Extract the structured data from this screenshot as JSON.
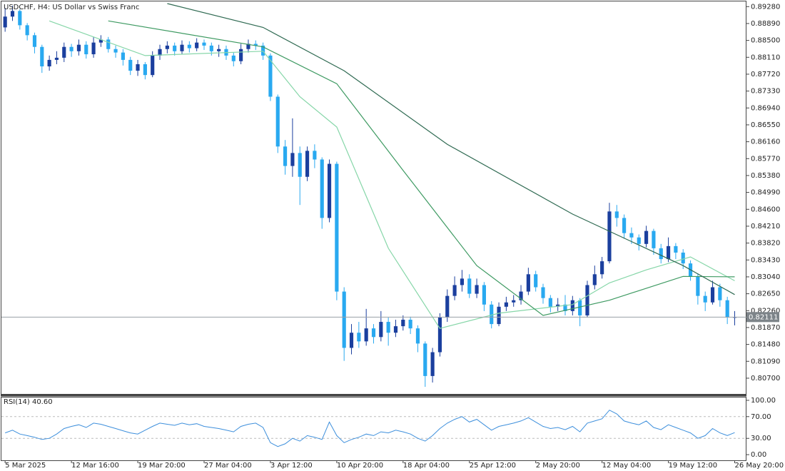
{
  "chart_data": [
    {
      "type": "candlestick",
      "title": "USDCHF, H4:  US Dollar vs Swiss Franc",
      "xlim": [
        -0.5,
        100.5
      ],
      "xticks": [
        {
          "value": 0,
          "label": "5 Mar 2025"
        },
        {
          "value": 9,
          "label": "12 Mar 16:00"
        },
        {
          "value": 18,
          "label": "19 Mar 20:00"
        },
        {
          "value": 27,
          "label": "27 Mar 04:00"
        },
        {
          "value": 36,
          "label": "3 Apr 12:00"
        },
        {
          "value": 45,
          "label": "10 Apr 20:00"
        },
        {
          "value": 54,
          "label": "18 Apr 04:00"
        },
        {
          "value": 63,
          "label": "25 Apr 12:00"
        },
        {
          "value": 72,
          "label": "2 May 20:00"
        },
        {
          "value": 81,
          "label": "12 May 04:00"
        },
        {
          "value": 90,
          "label": "19 May 12:00"
        },
        {
          "value": 99,
          "label": "26 May 20:00"
        }
      ],
      "ylim": [
        0.8032,
        0.894
      ],
      "yticks": [
        {
          "value": 0.8928,
          "label": "0.89280"
        },
        {
          "value": 0.8889,
          "label": "0.88890"
        },
        {
          "value": 0.885,
          "label": "0.88500"
        },
        {
          "value": 0.8811,
          "label": "0.88110"
        },
        {
          "value": 0.8772,
          "label": "0.87720"
        },
        {
          "value": 0.8733,
          "label": "0.87330"
        },
        {
          "value": 0.8694,
          "label": "0.86940"
        },
        {
          "value": 0.8655,
          "label": "0.86550"
        },
        {
          "value": 0.8616,
          "label": "0.86160"
        },
        {
          "value": 0.8577,
          "label": "0.85770"
        },
        {
          "value": 0.8538,
          "label": "0.85380"
        },
        {
          "value": 0.8499,
          "label": "0.84990"
        },
        {
          "value": 0.846,
          "label": "0.84600"
        },
        {
          "value": 0.8421,
          "label": "0.84210"
        },
        {
          "value": 0.8382,
          "label": "0.83820"
        },
        {
          "value": 0.8343,
          "label": "0.83430"
        },
        {
          "value": 0.8304,
          "label": "0.83040"
        },
        {
          "value": 0.8265,
          "label": "0.82650"
        },
        {
          "value": 0.8226,
          "label": "0.82260"
        },
        {
          "value": 0.8187,
          "label": "0.81870"
        },
        {
          "value": 0.8148,
          "label": "0.81480"
        },
        {
          "value": 0.8109,
          "label": "0.81090"
        },
        {
          "value": 0.807,
          "label": "0.80700"
        }
      ],
      "up_color": "#1b3f9e",
      "down_color": "#29a9f0",
      "open": [
        0.888,
        0.8905,
        0.8918,
        0.8885,
        0.8862,
        0.8835,
        0.879,
        0.8805,
        0.881,
        0.8835,
        0.8825,
        0.884,
        0.8818,
        0.8845,
        0.8852,
        0.883,
        0.8822,
        0.8805,
        0.878,
        0.8795,
        0.877,
        0.8815,
        0.883,
        0.8838,
        0.8825,
        0.884,
        0.8832,
        0.8845,
        0.8838,
        0.8825,
        0.883,
        0.8815,
        0.8802,
        0.883,
        0.8842,
        0.8838,
        0.8815,
        0.872,
        0.8605,
        0.856,
        0.859,
        0.8535,
        0.8595,
        0.8575,
        0.844,
        0.8565,
        0.827,
        0.814,
        0.8175,
        0.8155,
        0.8185,
        0.8165,
        0.82,
        0.8175,
        0.819,
        0.8205,
        0.8185,
        0.815,
        0.8075,
        0.813,
        0.821,
        0.826,
        0.8285,
        0.83,
        0.8265,
        0.8285,
        0.824,
        0.8195,
        0.8235,
        0.8245,
        0.825,
        0.827,
        0.831,
        0.828,
        0.8255,
        0.8235,
        0.824,
        0.8225,
        0.825,
        0.8215,
        0.8285,
        0.831,
        0.834,
        0.8455,
        0.844,
        0.8405,
        0.8395,
        0.838,
        0.841,
        0.837,
        0.8345,
        0.8375,
        0.836,
        0.8335,
        0.8305,
        0.826,
        0.8245,
        0.828,
        0.825,
        0.821
      ],
      "high": [
        0.8925,
        0.893,
        0.8922,
        0.889,
        0.8868,
        0.884,
        0.8815,
        0.8825,
        0.8845,
        0.8842,
        0.8852,
        0.8848,
        0.8858,
        0.8862,
        0.8858,
        0.8838,
        0.883,
        0.8812,
        0.8805,
        0.88,
        0.8825,
        0.884,
        0.8848,
        0.8845,
        0.885,
        0.8848,
        0.8855,
        0.8852,
        0.8845,
        0.884,
        0.8838,
        0.8822,
        0.8842,
        0.8852,
        0.885,
        0.8845,
        0.882,
        0.8725,
        0.862,
        0.867,
        0.8605,
        0.8605,
        0.861,
        0.858,
        0.8575,
        0.857,
        0.828,
        0.8195,
        0.82,
        0.823,
        0.8195,
        0.8225,
        0.821,
        0.8205,
        0.8215,
        0.8212,
        0.8192,
        0.8155,
        0.814,
        0.822,
        0.8275,
        0.8305,
        0.832,
        0.831,
        0.83,
        0.8292,
        0.8248,
        0.8245,
        0.8258,
        0.8262,
        0.8285,
        0.8325,
        0.8318,
        0.8288,
        0.8262,
        0.8255,
        0.8262,
        0.826,
        0.8255,
        0.8295,
        0.833,
        0.835,
        0.8475,
        0.847,
        0.8448,
        0.8418,
        0.8402,
        0.8422,
        0.8415,
        0.838,
        0.8395,
        0.8382,
        0.8368,
        0.8342,
        0.8312,
        0.827,
        0.8295,
        0.8288,
        0.8258,
        0.8225
      ],
      "low": [
        0.887,
        0.8895,
        0.8875,
        0.885,
        0.882,
        0.8775,
        0.878,
        0.8795,
        0.88,
        0.8812,
        0.8815,
        0.8808,
        0.881,
        0.8835,
        0.8822,
        0.881,
        0.8792,
        0.877,
        0.8768,
        0.876,
        0.8765,
        0.8805,
        0.882,
        0.8815,
        0.8818,
        0.8822,
        0.8825,
        0.8828,
        0.8815,
        0.8812,
        0.8805,
        0.879,
        0.8795,
        0.8822,
        0.8828,
        0.8805,
        0.871,
        0.859,
        0.854,
        0.8535,
        0.847,
        0.8525,
        0.8555,
        0.8415,
        0.843,
        0.825,
        0.811,
        0.8125,
        0.814,
        0.8145,
        0.815,
        0.8155,
        0.8145,
        0.8165,
        0.818,
        0.8172,
        0.813,
        0.805,
        0.806,
        0.812,
        0.82,
        0.825,
        0.827,
        0.8255,
        0.8255,
        0.8225,
        0.8185,
        0.819,
        0.8225,
        0.8235,
        0.824,
        0.8262,
        0.827,
        0.8242,
        0.8222,
        0.8225,
        0.8215,
        0.8215,
        0.819,
        0.821,
        0.8275,
        0.83,
        0.8335,
        0.842,
        0.8392,
        0.838,
        0.8365,
        0.8372,
        0.8355,
        0.8335,
        0.8338,
        0.8345,
        0.8322,
        0.8295,
        0.824,
        0.8225,
        0.824,
        0.8235,
        0.8195,
        0.8192
      ],
      "close": [
        0.8905,
        0.8918,
        0.8885,
        0.8862,
        0.8835,
        0.879,
        0.8805,
        0.881,
        0.8835,
        0.8825,
        0.884,
        0.8818,
        0.8845,
        0.8852,
        0.883,
        0.8822,
        0.8805,
        0.878,
        0.8795,
        0.877,
        0.8815,
        0.883,
        0.8838,
        0.8825,
        0.884,
        0.8832,
        0.8845,
        0.8838,
        0.8825,
        0.883,
        0.8815,
        0.8802,
        0.883,
        0.8842,
        0.8838,
        0.8815,
        0.872,
        0.8605,
        0.856,
        0.859,
        0.8535,
        0.8595,
        0.8575,
        0.844,
        0.8565,
        0.827,
        0.814,
        0.8175,
        0.8155,
        0.8185,
        0.8165,
        0.82,
        0.8175,
        0.819,
        0.8205,
        0.8185,
        0.815,
        0.8075,
        0.813,
        0.821,
        0.826,
        0.8285,
        0.83,
        0.8265,
        0.8285,
        0.824,
        0.8195,
        0.8235,
        0.8245,
        0.825,
        0.827,
        0.831,
        0.828,
        0.8255,
        0.8235,
        0.824,
        0.8225,
        0.825,
        0.8215,
        0.8285,
        0.831,
        0.834,
        0.8455,
        0.844,
        0.8405,
        0.8395,
        0.838,
        0.841,
        0.837,
        0.8345,
        0.8375,
        0.836,
        0.8335,
        0.8305,
        0.826,
        0.8245,
        0.828,
        0.825,
        0.821,
        0.82111
      ],
      "last_price": 0.82111,
      "overlays": [
        {
          "color": "#86d6a8",
          "x": [
            6,
            19,
            35,
            40,
            45,
            52,
            59,
            67,
            77,
            82,
            87,
            93,
            99
          ],
          "values": [
            0.8895,
            0.8815,
            0.8825,
            0.872,
            0.865,
            0.837,
            0.8185,
            0.822,
            0.824,
            0.829,
            0.832,
            0.835,
            0.8295
          ]
        },
        {
          "color": "#3e9a62",
          "x": [
            14,
            35,
            45,
            54,
            64,
            73,
            82,
            92,
            99
          ],
          "values": [
            0.8895,
            0.8835,
            0.875,
            0.855,
            0.833,
            0.8215,
            0.825,
            0.8305,
            0.8304
          ]
        },
        {
          "color": "#2f6a52",
          "x": [
            22,
            35,
            46,
            60,
            77,
            92,
            99
          ],
          "values": [
            0.8935,
            0.888,
            0.878,
            0.861,
            0.8449,
            0.833,
            0.8263
          ]
        }
      ]
    },
    {
      "type": "line",
      "title": "RSI(14) 40.60",
      "color": "#3d8fdc",
      "xlim": [
        -0.5,
        100.5
      ],
      "ylim": [
        -10.4,
        105.2
      ],
      "yticks": [
        {
          "value": 100,
          "label": "100.00"
        },
        {
          "value": 70,
          "label": "70.00"
        },
        {
          "value": 30,
          "label": "30.00"
        },
        {
          "value": 0,
          "label": "0.00"
        }
      ],
      "values": [
        40,
        45,
        38,
        35,
        32,
        28,
        30,
        38,
        48,
        52,
        55,
        50,
        58,
        56,
        52,
        48,
        44,
        40,
        38,
        45,
        52,
        58,
        56,
        54,
        58,
        55,
        57,
        52,
        50,
        48,
        45,
        42,
        52,
        56,
        58,
        50,
        22,
        15,
        20,
        30,
        25,
        35,
        32,
        28,
        60,
        35,
        22,
        28,
        32,
        38,
        35,
        42,
        40,
        45,
        42,
        38,
        30,
        25,
        35,
        48,
        58,
        65,
        70,
        60,
        65,
        55,
        45,
        52,
        55,
        58,
        62,
        68,
        60,
        52,
        48,
        50,
        46,
        52,
        42,
        58,
        62,
        66,
        82,
        75,
        62,
        58,
        55,
        62,
        50,
        46,
        55,
        50,
        45,
        40,
        30,
        35,
        48,
        40,
        35,
        40.6
      ]
    }
  ]
}
